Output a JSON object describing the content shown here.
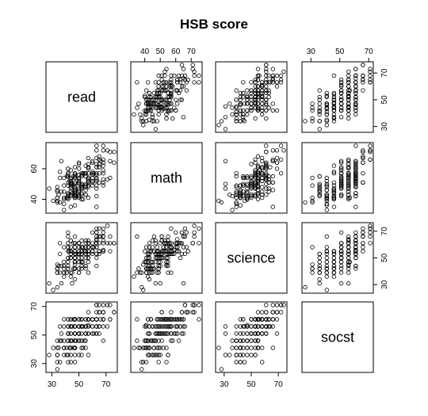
{
  "chart_data": {
    "type": "scatter",
    "title": "HSB score",
    "variables": [
      "read",
      "math",
      "science",
      "socst"
    ],
    "axes": {
      "read": {
        "range": [
          28,
          76
        ],
        "ticks": [
          30,
          50,
          70
        ]
      },
      "math": {
        "range": [
          33,
          75
        ],
        "ticks": [
          40,
          50,
          60,
          70
        ],
        "left_ticks": [
          40,
          60
        ]
      },
      "science": {
        "range": [
          26,
          74
        ],
        "ticks": [
          30,
          50,
          70
        ]
      },
      "socst": {
        "range": [
          26,
          71
        ],
        "ticks": [
          30,
          50,
          70
        ]
      }
    },
    "tick_sides": {
      "top": {
        "math": [
          40,
          50,
          60,
          70
        ],
        "socst": [
          30,
          50,
          70
        ]
      },
      "bottom": {
        "read": [
          30,
          50,
          70
        ],
        "science": [
          30,
          50,
          70
        ]
      },
      "left": {
        "math": [
          40,
          60
        ],
        "socst": [
          30,
          50,
          70
        ]
      },
      "right": {
        "read": [
          30,
          50,
          70
        ],
        "science": [
          30,
          50,
          70
        ]
      }
    },
    "observations": {
      "read": [
        57,
        68,
        44,
        63,
        47,
        44,
        50,
        34,
        63,
        57,
        60,
        57,
        73,
        54,
        45,
        42,
        47,
        57,
        68,
        55,
        63,
        63,
        50,
        60,
        37,
        34,
        65,
        47,
        44,
        52,
        42,
        76,
        65,
        42,
        52,
        60,
        68,
        65,
        47,
        39,
        47,
        55,
        52,
        42,
        65,
        55,
        50,
        65,
        47,
        57,
        53,
        39,
        44,
        63,
        73,
        39,
        37,
        42,
        63,
        48,
        50,
        47,
        44,
        34,
        50,
        44,
        60,
        47,
        63,
        50,
        44,
        60,
        73,
        68,
        55,
        47,
        55,
        68,
        31,
        47,
        63,
        36,
        68,
        63,
        55,
        55,
        52,
        34,
        50,
        55,
        52,
        63,
        68,
        39,
        44,
        50,
        71,
        63,
        34,
        63,
        68,
        47,
        47,
        63,
        52,
        55,
        60,
        35,
        47,
        71,
        57,
        44,
        42,
        50,
        46,
        60,
        57,
        53,
        52,
        44,
        50,
        34,
        57,
        57,
        68,
        42,
        61,
        76,
        47,
        46,
        39,
        52,
        28,
        42,
        47,
        47,
        52,
        47,
        50,
        44,
        47,
        45,
        47,
        65,
        43,
        47,
        57,
        68,
        52,
        42,
        42,
        66,
        47,
        57,
        47,
        57,
        52,
        44,
        50,
        39,
        57,
        57,
        42,
        47,
        42,
        60,
        44,
        63,
        65,
        39,
        50,
        52,
        60,
        44,
        52,
        55,
        50,
        65,
        52,
        47,
        63,
        50,
        42,
        36,
        50,
        41,
        47,
        55,
        42,
        57,
        47,
        55,
        52,
        42,
        34,
        50,
        36,
        50,
        41,
        47
      ],
      "math": [
        41,
        53,
        54,
        47,
        57,
        51,
        42,
        45,
        54,
        52,
        51,
        51,
        71,
        57,
        50,
        43,
        51,
        60,
        62,
        57,
        35,
        75,
        45,
        57,
        45,
        46,
        66,
        57,
        49,
        49,
        57,
        64,
        63,
        57,
        50,
        58,
        75,
        68,
        44,
        40,
        41,
        46,
        43,
        60,
        51,
        43,
        53,
        66,
        46,
        48,
        57,
        33,
        45,
        49,
        54,
        49,
        65,
        55,
        42,
        42,
        43,
        44,
        42,
        41,
        60,
        52,
        54,
        55,
        67,
        63,
        53,
        49,
        65,
        57,
        55,
        61,
        55,
        59,
        39,
        45,
        61,
        38,
        49,
        53,
        62,
        57,
        48,
        48,
        46,
        49,
        47,
        61,
        64,
        45,
        59,
        64,
        72,
        56,
        39,
        57,
        66,
        50,
        43,
        72,
        40,
        50,
        52,
        43,
        54,
        53,
        49,
        43,
        51,
        51,
        49,
        65,
        67,
        40,
        44,
        35,
        47,
        38,
        61,
        63,
        72,
        42,
        57,
        71,
        48,
        55,
        37,
        48,
        47,
        56,
        42,
        47,
        47,
        57,
        54,
        48,
        56,
        44,
        42,
        57,
        52,
        36,
        61,
        51,
        57,
        44,
        43,
        65,
        46,
        53,
        41,
        53,
        56,
        43,
        41,
        41,
        57,
        54,
        60,
        41,
        49,
        64,
        47,
        52,
        61,
        54,
        50,
        48,
        56,
        50,
        49,
        48,
        56,
        61,
        55,
        54,
        63,
        52,
        55,
        58,
        42,
        41,
        45,
        49,
        41,
        53,
        43,
        43,
        50,
        40,
        41,
        51,
        54,
        51,
        55,
        54
      ],
      "science": [
        47,
        63,
        58,
        53,
        53,
        63,
        53,
        39,
        58,
        50,
        53,
        63,
        61,
        55,
        31,
        50,
        50,
        58,
        55,
        53,
        66,
        72,
        47,
        58,
        44,
        42,
        53,
        61,
        53,
        42,
        58,
        61,
        61,
        58,
        53,
        55,
        61,
        55,
        55,
        47,
        42,
        55,
        53,
        61,
        66,
        42,
        61,
        66,
        66,
        55,
        58,
        36,
        63,
        44,
        55,
        39,
        31,
        50,
        50,
        53,
        39,
        42,
        36,
        42,
        61,
        55,
        55,
        47,
        69,
        61,
        55,
        55,
        66,
        55,
        63,
        61,
        44,
        56,
        26,
        47,
        64,
        39,
        55,
        63,
        61,
        53,
        50,
        39,
        42,
        50,
        63,
        61,
        69,
        42,
        53,
        53,
        74,
        53,
        45,
        58,
        72,
        47,
        34,
        69,
        55,
        53,
        58,
        44,
        45,
        61,
        53,
        55,
        55,
        53,
        42,
        58,
        58,
        47,
        55,
        39,
        61,
        28,
        58,
        50,
        66,
        44,
        58,
        61,
        55,
        61,
        39,
        53,
        31,
        55,
        42,
        53,
        47,
        58,
        58,
        50,
        53,
        39,
        42,
        72,
        55,
        42,
        58,
        66,
        58,
        47,
        61,
        66,
        55,
        55,
        50,
        61,
        58,
        53,
        39,
        58,
        39,
        53,
        69,
        47,
        42,
        69,
        50,
        58,
        55,
        44,
        61,
        58,
        61,
        50,
        47,
        55,
        61,
        55,
        53,
        50,
        61,
        55,
        66,
        53,
        47,
        39,
        58,
        44,
        42,
        61,
        50,
        58,
        44,
        47,
        42,
        53,
        61,
        50,
        39,
        47
      ],
      "socst": [
        57,
        61,
        31,
        56,
        61,
        61,
        61,
        36,
        51,
        51,
        61,
        61,
        71,
        46,
        56,
        56,
        61,
        61,
        46,
        56,
        61,
        71,
        56,
        61,
        46,
        36,
        56,
        56,
        51,
        56,
        51,
        66,
        56,
        61,
        61,
        61,
        61,
        66,
        61,
        56,
        31,
        46,
        41,
        61,
        66,
        41,
        51,
        71,
        41,
        61,
        56,
        41,
        56,
        61,
        61,
        46,
        51,
        36,
        61,
        46,
        51,
        61,
        46,
        41,
        56,
        56,
        61,
        51,
        66,
        56,
        61,
        51,
        61,
        61,
        61,
        61,
        56,
        61,
        41,
        46,
        56,
        31,
        56,
        61,
        61,
        56,
        51,
        36,
        46,
        51,
        56,
        56,
        66,
        36,
        51,
        51,
        71,
        61,
        31,
        51,
        71,
        51,
        36,
        71,
        46,
        51,
        61,
        41,
        56,
        56,
        36,
        41,
        51,
        56,
        41,
        56,
        66,
        41,
        61,
        46,
        51,
        26,
        56,
        61,
        66,
        46,
        51,
        66,
        41,
        61,
        41,
        61,
        36,
        56,
        41,
        51,
        46,
        56,
        61,
        56,
        61,
        46,
        51,
        66,
        41,
        41,
        61,
        66,
        61,
        46,
        51,
        61,
        41,
        51,
        46,
        61,
        61,
        36,
        46,
        41,
        56,
        61,
        51,
        56,
        31,
        61,
        46,
        61,
        56,
        61,
        51,
        61,
        56,
        41,
        56,
        51,
        61,
        51,
        56,
        51,
        61,
        51,
        56,
        46,
        36,
        41,
        56,
        51,
        46,
        61,
        51,
        56,
        36,
        46,
        46,
        46,
        56,
        51,
        36,
        41
      ]
    }
  }
}
